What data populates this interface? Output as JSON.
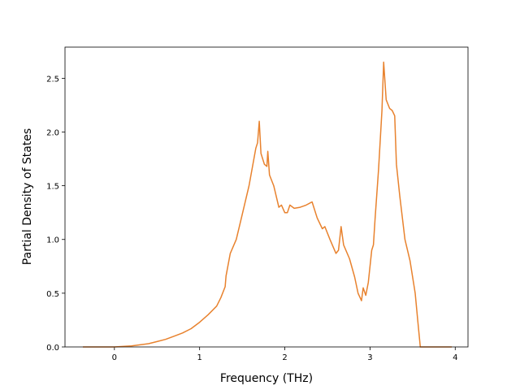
{
  "chart_data": {
    "type": "line",
    "x_label": "Frequency (THz)",
    "y_label": "Partial Density of States",
    "x": [
      -0.37,
      0,
      0.2,
      0.4,
      0.5,
      0.6,
      0.7,
      0.8,
      0.9,
      1.0,
      1.1,
      1.2,
      1.25,
      1.3,
      1.31,
      1.36,
      1.43,
      1.49,
      1.58,
      1.66,
      1.68,
      1.7,
      1.72,
      1.76,
      1.79,
      1.8,
      1.82,
      1.87,
      1.93,
      1.96,
      2.0,
      2.03,
      2.06,
      2.11,
      2.18,
      2.25,
      2.32,
      2.38,
      2.44,
      2.47,
      2.53,
      2.6,
      2.63,
      2.66,
      2.69,
      2.76,
      2.82,
      2.86,
      2.9,
      2.92,
      2.95,
      2.98,
      3.02,
      3.04,
      3.06,
      3.1,
      3.14,
      3.16,
      3.19,
      3.23,
      3.26,
      3.29,
      3.31,
      3.35,
      3.41,
      3.47,
      3.53,
      3.56,
      3.59,
      3.96
    ],
    "series": [
      {
        "color": "#e8822e",
        "values": [
          0,
          0,
          0.01,
          0.03,
          0.05,
          0.07,
          0.1,
          0.13,
          0.17,
          0.23,
          0.3,
          0.38,
          0.46,
          0.56,
          0.66,
          0.87,
          1.0,
          1.2,
          1.5,
          1.85,
          1.9,
          2.1,
          1.8,
          1.7,
          1.68,
          1.82,
          1.6,
          1.5,
          1.3,
          1.32,
          1.25,
          1.25,
          1.32,
          1.29,
          1.3,
          1.32,
          1.35,
          1.2,
          1.1,
          1.12,
          1.0,
          0.87,
          0.9,
          1.12,
          0.95,
          0.82,
          0.65,
          0.5,
          0.43,
          0.55,
          0.48,
          0.6,
          0.9,
          0.95,
          1.2,
          1.65,
          2.2,
          2.65,
          2.3,
          2.22,
          2.2,
          2.15,
          1.7,
          1.4,
          1.0,
          0.8,
          0.5,
          0.25,
          0,
          0
        ]
      }
    ],
    "xlim": [
      -0.58,
      4.15
    ],
    "ylim": [
      0,
      2.79
    ],
    "xticks": [
      0,
      1,
      2,
      3,
      4
    ],
    "yticks": [
      {
        "value": 0,
        "label": "0.0"
      },
      0.5,
      {
        "value": 1,
        "label": "1.0"
      },
      1.5,
      {
        "value": 2,
        "label": "2.0"
      },
      2.5
    ],
    "grid": false
  }
}
